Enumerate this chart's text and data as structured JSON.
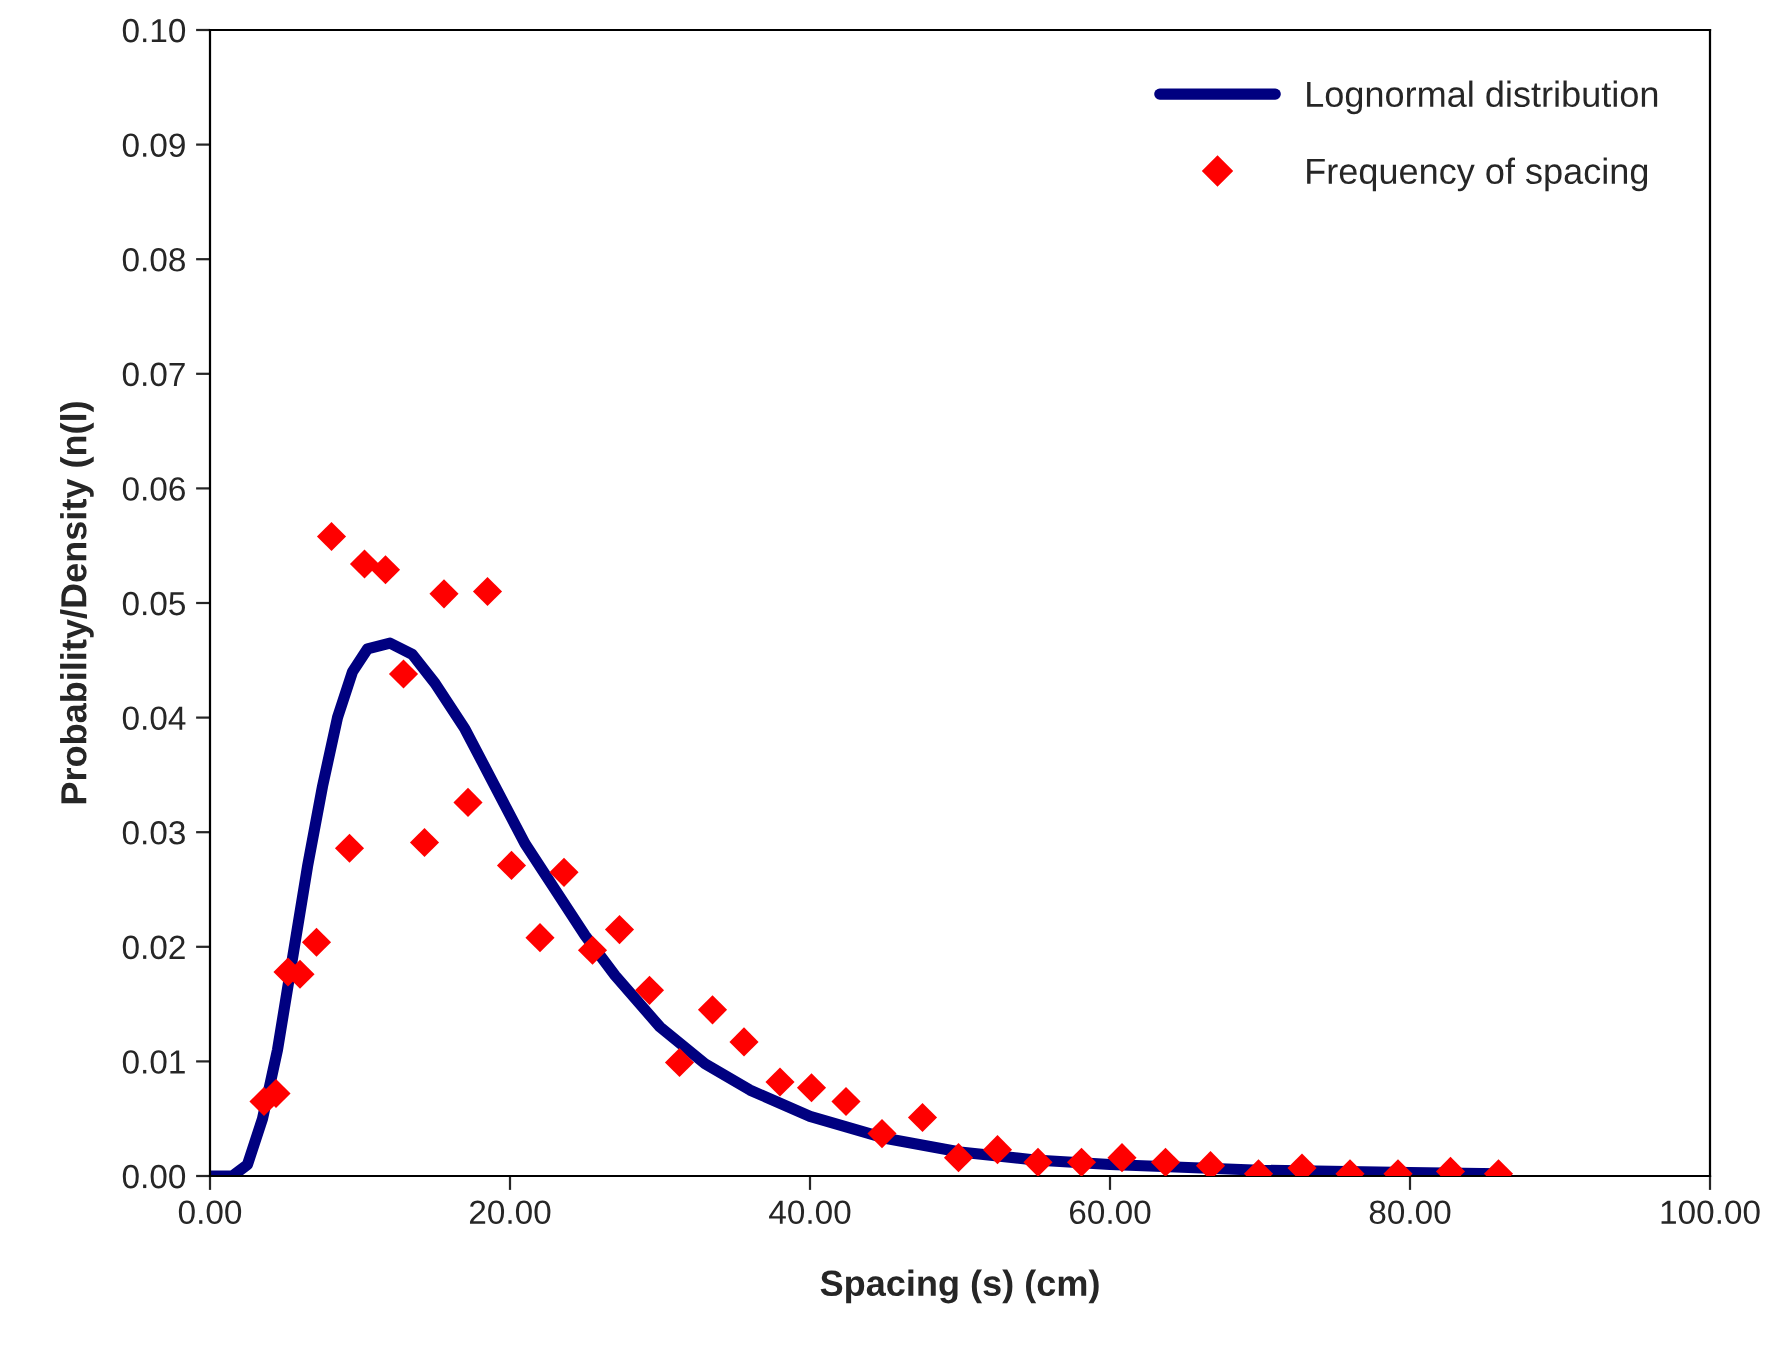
{
  "chart_data": {
    "type": "line",
    "xlabel": "Spacing (s) (cm)",
    "ylabel": "Probability/Density (n(l)",
    "xlim": [
      0,
      100
    ],
    "ylim": [
      0,
      0.1
    ],
    "xticks": [
      {
        "value": 0,
        "label": "0.00"
      },
      {
        "value": 20,
        "label": "20.00"
      },
      {
        "value": 40,
        "label": "40.00"
      },
      {
        "value": 60,
        "label": "60.00"
      },
      {
        "value": 80,
        "label": "80.00"
      },
      {
        "value": 100,
        "label": "100.00"
      }
    ],
    "yticks": [
      {
        "value": 0,
        "label": "0.00"
      },
      {
        "value": 0.01,
        "label": "0.01"
      },
      {
        "value": 0.02,
        "label": "0.02"
      },
      {
        "value": 0.03,
        "label": "0.03"
      },
      {
        "value": 0.04,
        "label": "0.04"
      },
      {
        "value": 0.05,
        "label": "0.05"
      },
      {
        "value": 0.06,
        "label": "0.06"
      },
      {
        "value": 0.07,
        "label": "0.07"
      },
      {
        "value": 0.08,
        "label": "0.08"
      },
      {
        "value": 0.09,
        "label": "0.09"
      },
      {
        "value": 0.1,
        "label": "0.10"
      }
    ],
    "grid": false,
    "legend": "top right",
    "series": [
      {
        "name": "Lognormal distribution",
        "color": "#000080",
        "marker": "none",
        "line_style": "solid",
        "x": [
          0,
          1.5,
          2.5,
          3.5,
          4.5,
          5.5,
          6.5,
          7.5,
          8.5,
          9.5,
          10.5,
          12,
          13.5,
          15,
          17,
          19,
          21,
          23,
          25,
          27,
          30,
          33,
          36,
          40,
          45,
          50,
          55,
          60,
          70,
          80,
          86
        ],
        "values": [
          0,
          0,
          0.001,
          0.005,
          0.011,
          0.019,
          0.027,
          0.034,
          0.04,
          0.044,
          0.046,
          0.0465,
          0.0455,
          0.043,
          0.039,
          0.034,
          0.029,
          0.025,
          0.021,
          0.0175,
          0.013,
          0.0098,
          0.0075,
          0.0052,
          0.0033,
          0.0021,
          0.0014,
          0.001,
          0.0005,
          0.0003,
          0.0002
        ]
      },
      {
        "name": "Frequency of spacing",
        "type": "scatter",
        "color": "#ff0000",
        "marker": "diamond",
        "x": [
          3.6,
          4.4,
          5.2,
          6.0,
          7.1,
          8.1,
          9.3,
          10.3,
          11.7,
          12.9,
          14.3,
          15.6,
          17.2,
          18.5,
          20.1,
          22.0,
          23.6,
          25.5,
          27.3,
          29.3,
          31.3,
          33.5,
          35.6,
          38.0,
          40.1,
          42.4,
          44.8,
          47.5,
          49.9,
          52.5,
          55.2,
          58.1,
          60.8,
          63.7,
          66.7,
          69.9,
          72.8,
          76.0,
          79.2,
          82.7,
          85.9
        ],
        "values": [
          0.0065,
          0.0072,
          0.0178,
          0.0176,
          0.0204,
          0.0558,
          0.0286,
          0.0534,
          0.0529,
          0.0438,
          0.0291,
          0.0508,
          0.0326,
          0.051,
          0.0271,
          0.0208,
          0.0265,
          0.0197,
          0.0215,
          0.0162,
          0.0099,
          0.0145,
          0.0117,
          0.0082,
          0.0077,
          0.0065,
          0.0037,
          0.0051,
          0.0016,
          0.0023,
          0.0012,
          0.0012,
          0.0016,
          0.0012,
          0.0009,
          0.0002,
          0.0007,
          0.0002,
          0.0002,
          0.0004,
          0.0002
        ]
      }
    ]
  }
}
